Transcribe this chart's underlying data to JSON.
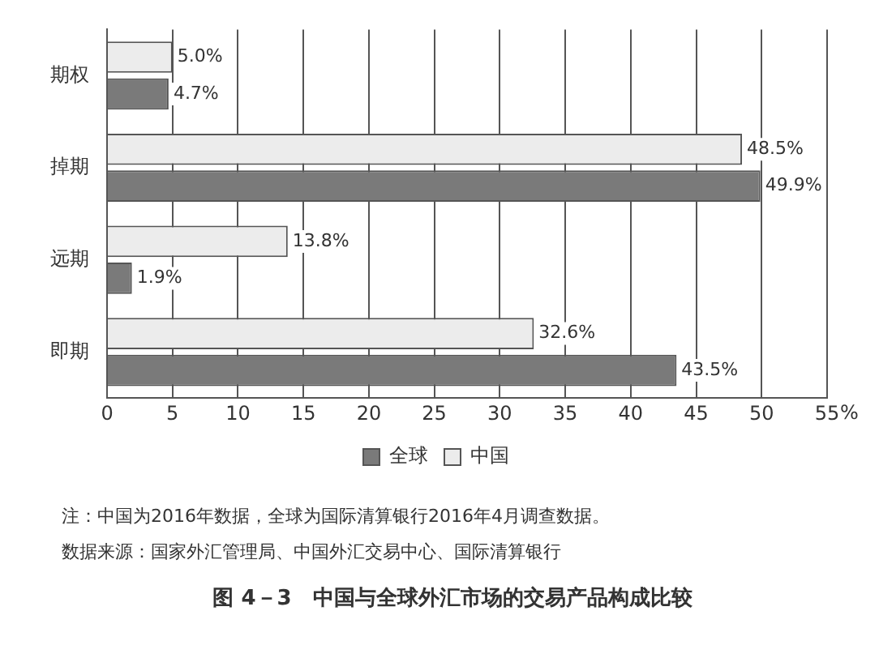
{
  "chart_data": {
    "type": "bar",
    "orientation": "horizontal",
    "title": "图 4－3　中国与全球外汇市场的交易产品构成比较",
    "xlabel": "%",
    "categories": [
      "期权",
      "掉期",
      "远期",
      "即期"
    ],
    "series": [
      {
        "name": "全球",
        "color": "#7a7a7a",
        "values": [
          4.7,
          49.9,
          1.9,
          43.5
        ],
        "value_labels": [
          "4.7%",
          "49.9%",
          "1.9%",
          "43.5%"
        ]
      },
      {
        "name": "中国",
        "color": "#ececec",
        "values": [
          5.0,
          48.5,
          13.8,
          32.6
        ],
        "value_labels": [
          "5.0%",
          "48.5%",
          "13.8%",
          "32.6%"
        ]
      }
    ],
    "xlim": [
      0,
      55
    ],
    "xticks": [
      0,
      5,
      10,
      15,
      20,
      25,
      30,
      35,
      40,
      45,
      50,
      55
    ],
    "grid": "x",
    "legend": "bottom",
    "annotations": [
      "注：中国为2016年数据，全球为国际清算银行2016年4月调查数据。",
      "数据来源：国家外汇管理局、中国外汇交易中心、国际清算银行"
    ]
  }
}
